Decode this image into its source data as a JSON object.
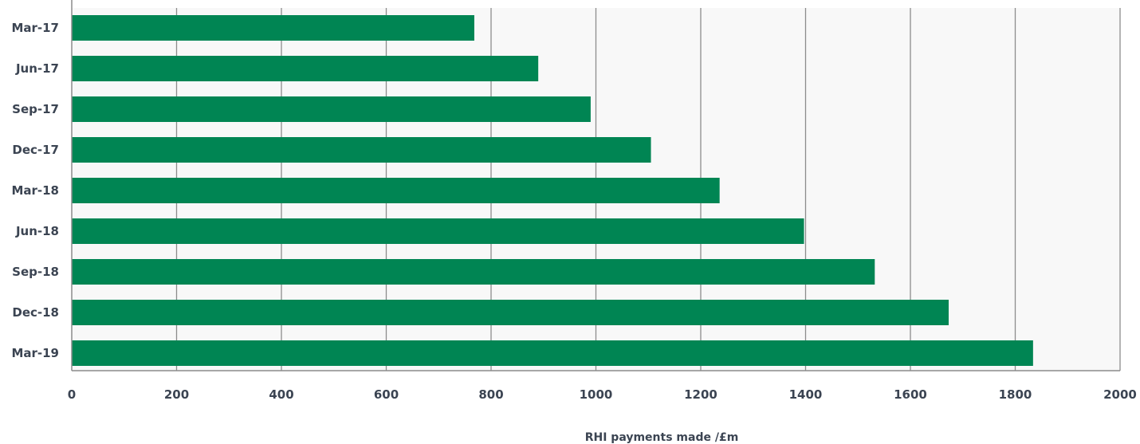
{
  "chart_data": {
    "type": "bar",
    "orientation": "horizontal",
    "title": "",
    "xlabel": "RHI payments made /£m",
    "ylabel": "",
    "categories": [
      "Mar-17",
      "Jun-17",
      "Sep-17",
      "Dec-17",
      "Mar-18",
      "Jun-18",
      "Sep-18",
      "Dec-18",
      "Mar-19"
    ],
    "series": [
      {
        "values": [
          768,
          890,
          990,
          1105,
          1236,
          1397,
          1532,
          1673,
          1834
        ]
      }
    ],
    "xlim": [
      0,
      2000
    ],
    "xticks": [
      "0",
      "200",
      "400",
      "600",
      "800",
      "1000",
      "1200",
      "1400",
      "1600",
      "1800",
      "2000"
    ],
    "grid": "vertical",
    "legend": "none",
    "colors": {
      "bar": "#008553",
      "plot_background": "#f8f8f8",
      "gridline": "#8c8c8c",
      "text": "#3b4452"
    }
  }
}
